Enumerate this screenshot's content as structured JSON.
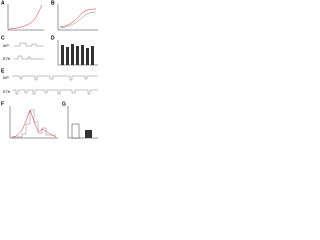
{
  "panels": [
    {
      "label": "A"
    },
    {
      "label": "B"
    },
    {
      "label": "C",
      "traces": [
        "WT",
        "E7K"
      ]
    },
    {
      "label": "D"
    },
    {
      "label": "E",
      "traces": [
        "WT",
        "E7K"
      ]
    },
    {
      "label": "F"
    },
    {
      "label": "G"
    }
  ]
}
